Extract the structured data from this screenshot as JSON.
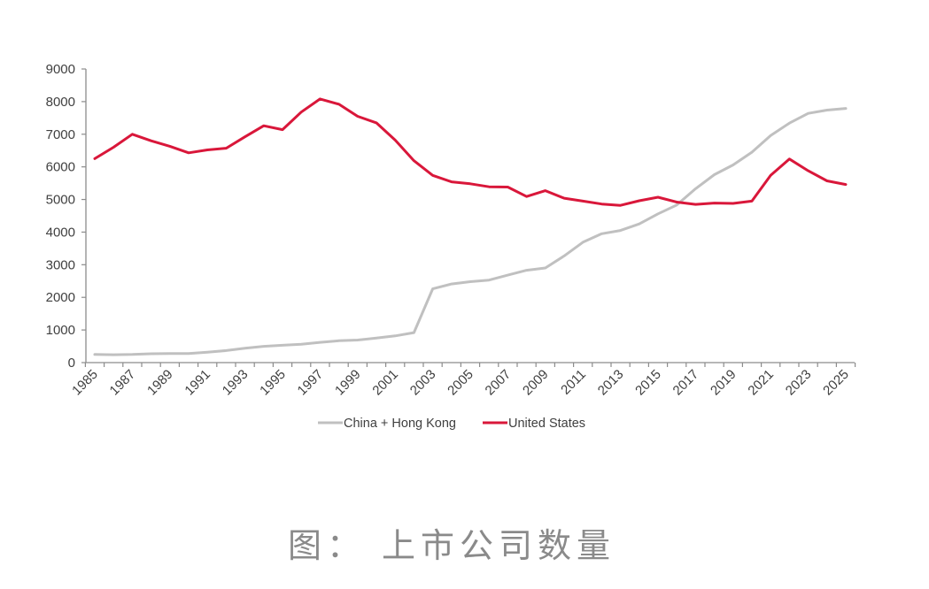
{
  "chart_data": {
    "type": "line",
    "title": "",
    "xlabel": "",
    "ylabel": "",
    "ylim": [
      0,
      9000
    ],
    "yticks": [
      0,
      1000,
      2000,
      3000,
      4000,
      5000,
      6000,
      7000,
      8000,
      9000
    ],
    "grid": false,
    "legend_position": "bottom",
    "x": [
      1985,
      1986,
      1987,
      1988,
      1989,
      1990,
      1991,
      1992,
      1993,
      1994,
      1995,
      1996,
      1997,
      1998,
      1999,
      2000,
      2001,
      2002,
      2003,
      2004,
      2005,
      2006,
      2007,
      2008,
      2009,
      2010,
      2011,
      2012,
      2013,
      2014,
      2015,
      2016,
      2017,
      2018,
      2019,
      2020,
      2021,
      2022,
      2023,
      2024,
      2025
    ],
    "xtick_labels": [
      "1985",
      "1987",
      "1989",
      "1991",
      "1993",
      "1995",
      "1997",
      "1999",
      "2001",
      "2003",
      "2005",
      "2007",
      "2009",
      "2011",
      "2013",
      "2015",
      "2017",
      "2019",
      "2021",
      "2023",
      "2025"
    ],
    "series": [
      {
        "name": "China + Hong Kong",
        "color": "#c0c0c0",
        "values": [
          250,
          240,
          250,
          270,
          280,
          280,
          320,
          370,
          440,
          500,
          530,
          560,
          620,
          670,
          690,
          750,
          820,
          920,
          2260,
          2410,
          2480,
          2530,
          2680,
          2830,
          2900,
          3270,
          3690,
          3950,
          4050,
          4250,
          4560,
          4830,
          5330,
          5760,
          6060,
          6450,
          6960,
          7340,
          7640,
          7740,
          7790
        ]
      },
      {
        "name": "United States",
        "color": "#d9173a",
        "values": [
          6250,
          6600,
          7000,
          6800,
          6630,
          6430,
          6520,
          6570,
          6920,
          7260,
          7140,
          7680,
          8080,
          7920,
          7550,
          7350,
          6820,
          6190,
          5740,
          5540,
          5480,
          5390,
          5380,
          5090,
          5270,
          5040,
          4950,
          4860,
          4820,
          4960,
          5070,
          4920,
          4850,
          4890,
          4880,
          4950,
          5740,
          6240,
          5880,
          5570,
          5460
        ]
      }
    ]
  },
  "caption": "图： 上市公司数量"
}
